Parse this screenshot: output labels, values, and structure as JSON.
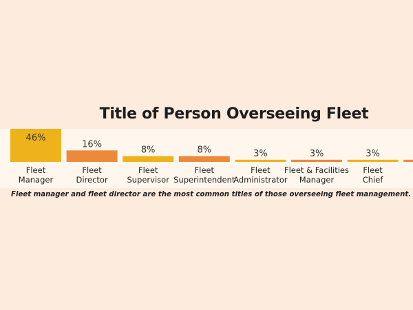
{
  "chart_data": {
    "type": "bar",
    "title": "Title of Person Overseeing Fleet",
    "categories": [
      [
        "Fleet",
        "Manager"
      ],
      [
        "Fleet",
        "Director"
      ],
      [
        "Fleet",
        "Supervisor"
      ],
      [
        "Fleet",
        "Superintendent"
      ],
      [
        "Fleet",
        "Administrator"
      ],
      [
        "Fleet & Facilities",
        "Manager"
      ],
      [
        "Fleet",
        "Chief"
      ],
      [
        "",
        ""
      ]
    ],
    "values": [
      46,
      16,
      8,
      8,
      3,
      3,
      3,
      3
    ],
    "value_labels": [
      "46%",
      "16%",
      "8%",
      "8%",
      "3%",
      "3%",
      "3%",
      ""
    ],
    "unit": "%",
    "ylim": [
      0,
      46
    ],
    "grid": false,
    "legend": "none",
    "colors": [
      "#eeb21a",
      "#ec8a3c"
    ]
  },
  "caption": "Fleet manager and fleet director are the most common titles of those overseeing fleet management."
}
